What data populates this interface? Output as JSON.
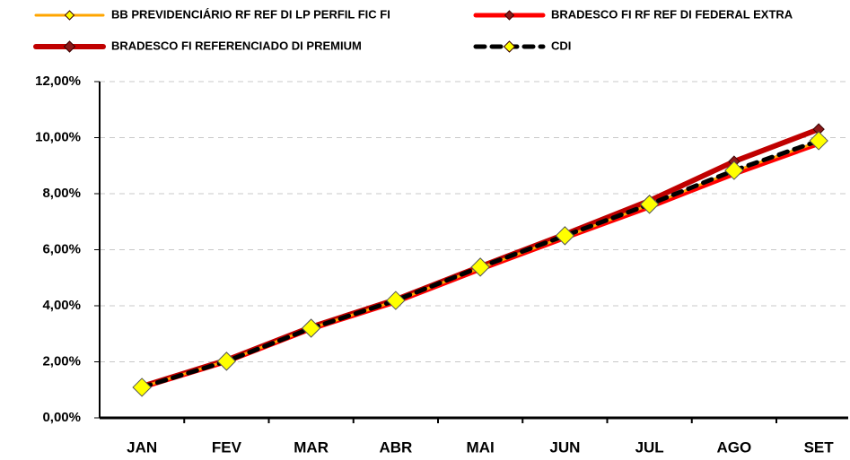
{
  "chart_data": {
    "type": "line",
    "categories": [
      "JAN",
      "FEV",
      "MAR",
      "ABR",
      "MAI",
      "JUN",
      "JUL",
      "AGO",
      "SET"
    ],
    "series": [
      {
        "name": "BB PREVIDENCIÁRIO RF REF DI LP PERFIL FIC FI",
        "color": "#FFA500",
        "marker_color": "#FFFF00",
        "values": [
          1.1,
          2.03,
          3.2,
          4.17,
          5.35,
          6.46,
          7.6,
          8.8,
          9.85
        ]
      },
      {
        "name": "BRADESCO FI RF REF DI FEDERAL EXTRA",
        "color": "#FF0000",
        "marker_color": "#8B1A1A",
        "values": [
          1.08,
          2.0,
          3.17,
          4.13,
          5.3,
          6.42,
          7.52,
          8.7,
          9.78
        ]
      },
      {
        "name": "BRADESCO FI REFERENCIADO DI PREMIUM",
        "color": "#C00000",
        "marker_color": "#8B1A1A",
        "values": [
          1.12,
          2.06,
          3.24,
          4.22,
          5.4,
          6.55,
          7.75,
          9.15,
          10.3
        ]
      },
      {
        "name": "CDI",
        "color": "#000000",
        "marker_color": "#FFFF00",
        "values": [
          1.09,
          2.02,
          3.2,
          4.19,
          5.38,
          6.5,
          7.62,
          8.83,
          9.89
        ]
      }
    ],
    "ylim": [
      0,
      12
    ],
    "yticks": [
      {
        "value": 0,
        "label": "0,00%"
      },
      {
        "value": 2,
        "label": "2,00%"
      },
      {
        "value": 4,
        "label": "4,00%"
      },
      {
        "value": 6,
        "label": "6,00%"
      },
      {
        "value": 8,
        "label": "8,00%"
      },
      {
        "value": 10,
        "label": "10,00%"
      },
      {
        "value": 12,
        "label": "12,00%"
      }
    ],
    "grid": true
  }
}
